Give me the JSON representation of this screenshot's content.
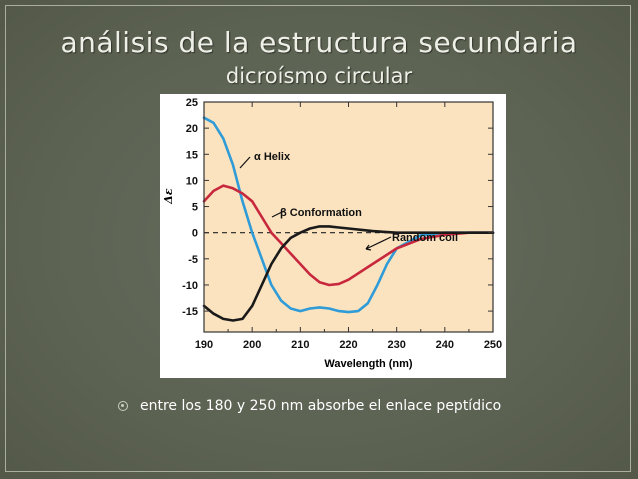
{
  "slide": {
    "title": "análisis de la estructura secundaria",
    "subtitle": "dicroísmo circular",
    "bullet_icon": "circle-bullet-icon",
    "bullet_text": "entre los 180 y 250 nm absorbe el enlace peptídico"
  },
  "colors": {
    "background": "#5d6353",
    "plot_background": "#fbe3bf",
    "alpha_helix": "#2f9bd7",
    "beta": "#c8283d",
    "random_coil": "#1a1a1a"
  },
  "chart_data": {
    "type": "line",
    "xlabel": "Wavelength (nm)",
    "ylabel": "Δε",
    "xlim": [
      190,
      250
    ],
    "ylim": [
      -19,
      25
    ],
    "x_ticks": [
      190,
      200,
      210,
      220,
      230,
      240,
      250
    ],
    "y_ticks": [
      25,
      20,
      15,
      10,
      5,
      0,
      -5,
      -10,
      -15
    ],
    "reference_line": {
      "y": 0,
      "style": "dashed"
    },
    "grid": false,
    "series": [
      {
        "name": "α Helix",
        "label": "α Helix",
        "color": "#2f9bd7",
        "points": [
          [
            190,
            22
          ],
          [
            192,
            21
          ],
          [
            194,
            18
          ],
          [
            196,
            13
          ],
          [
            198,
            6
          ],
          [
            200,
            0
          ],
          [
            202,
            -5
          ],
          [
            204,
            -10
          ],
          [
            206,
            -13
          ],
          [
            208,
            -14.5
          ],
          [
            210,
            -15
          ],
          [
            212,
            -14.5
          ],
          [
            214,
            -14.3
          ],
          [
            216,
            -14.5
          ],
          [
            218,
            -15
          ],
          [
            220,
            -15.2
          ],
          [
            222,
            -15
          ],
          [
            224,
            -13.5
          ],
          [
            226,
            -10
          ],
          [
            228,
            -6
          ],
          [
            230,
            -3
          ],
          [
            235,
            -0.5
          ],
          [
            240,
            0
          ],
          [
            250,
            0
          ]
        ]
      },
      {
        "name": "β Conformation",
        "label": "β Conformation",
        "color": "#c8283d",
        "points": [
          [
            190,
            6
          ],
          [
            192,
            8
          ],
          [
            194,
            9
          ],
          [
            196,
            8.5
          ],
          [
            198,
            7.5
          ],
          [
            200,
            6
          ],
          [
            202,
            3
          ],
          [
            204,
            0
          ],
          [
            206,
            -2
          ],
          [
            208,
            -4
          ],
          [
            210,
            -6
          ],
          [
            212,
            -8
          ],
          [
            214,
            -9.5
          ],
          [
            216,
            -10
          ],
          [
            218,
            -9.8
          ],
          [
            220,
            -9
          ],
          [
            225,
            -6
          ],
          [
            230,
            -3
          ],
          [
            235,
            -1.2
          ],
          [
            240,
            -0.4
          ],
          [
            245,
            0
          ],
          [
            250,
            0
          ]
        ]
      },
      {
        "name": "Random coil",
        "label": "Random coil",
        "color": "#1a1a1a",
        "points": [
          [
            190,
            -14
          ],
          [
            192,
            -15.5
          ],
          [
            194,
            -16.5
          ],
          [
            196,
            -16.8
          ],
          [
            198,
            -16.5
          ],
          [
            200,
            -14
          ],
          [
            202,
            -10
          ],
          [
            204,
            -6
          ],
          [
            206,
            -3
          ],
          [
            208,
            -1
          ],
          [
            210,
            0
          ],
          [
            212,
            0.8
          ],
          [
            214,
            1.2
          ],
          [
            216,
            1.2
          ],
          [
            218,
            1
          ],
          [
            220,
            0.8
          ],
          [
            225,
            0.3
          ],
          [
            230,
            0
          ],
          [
            240,
            0
          ],
          [
            250,
            0
          ]
        ]
      }
    ]
  }
}
